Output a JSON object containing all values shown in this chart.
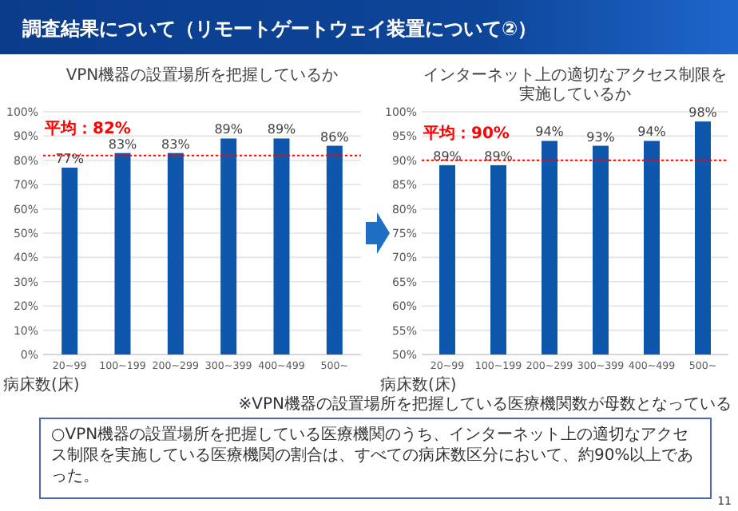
{
  "chart_data": [
    {
      "type": "other",
      "title": "調査結果について（リモートゲートウェイ装置について②）",
      "annotations": [
        "○VPN機器の設置場所を把握している医療機関のうち、インターネット上の適切なアクセス制限を実施している医療機関の割合は、すべての病床数区分において、約90%以上であった。",
        "11"
      ]
    },
    {
      "type": "bar",
      "title": "VPN機器の設置場所を把握しているか",
      "xlabel": "病床数(床)",
      "categories": [
        "20~99",
        "100~199",
        "200~299",
        "300~399",
        "400~499",
        "500~"
      ],
      "values": [
        77,
        83,
        83,
        89,
        89,
        86
      ],
      "color": "#0e57ad",
      "value_labels": [
        "77%",
        "83%",
        "83%",
        "89%",
        "89%",
        "86%"
      ],
      "ylim": [
        0,
        100
      ],
      "yticks": [
        {
          "value": 0,
          "label": "0%"
        },
        {
          "value": 10,
          "label": "10%"
        },
        {
          "value": 20,
          "label": "20%"
        },
        {
          "value": 30,
          "label": "30%"
        },
        {
          "value": 40,
          "label": "40%"
        },
        {
          "value": 50,
          "label": "50%"
        },
        {
          "value": 60,
          "label": "60%"
        },
        {
          "value": 70,
          "label": "70%"
        },
        {
          "value": 80,
          "label": "80%"
        },
        {
          "value": 90,
          "label": "90%"
        },
        {
          "value": 100,
          "label": "100%"
        }
      ],
      "grid": "y",
      "ref_lines": [
        {
          "axis": "y",
          "value": 82,
          "label": "平均：82%",
          "color": "#ff0000",
          "line_style": "dotted"
        }
      ]
    },
    {
      "type": "bar",
      "title": "インターネット上の適切なアクセス制限を実施しているか",
      "xlabel": "病床数(床)",
      "categories": [
        "20~99",
        "100~199",
        "200~299",
        "300~399",
        "400~499",
        "500~"
      ],
      "values": [
        89,
        89,
        94,
        93,
        94,
        98
      ],
      "color": "#0e57ad",
      "value_labels": [
        "89%",
        "89%",
        "94%",
        "93%",
        "94%",
        "98%"
      ],
      "ylim": [
        50,
        100
      ],
      "yticks": [
        {
          "value": 50,
          "label": "50%"
        },
        {
          "value": 55,
          "label": "55%"
        },
        {
          "value": 60,
          "label": "60%"
        },
        {
          "value": 65,
          "label": "65%"
        },
        {
          "value": 70,
          "label": "70%"
        },
        {
          "value": 75,
          "label": "75%"
        },
        {
          "value": 80,
          "label": "80%"
        },
        {
          "value": 85,
          "label": "85%"
        },
        {
          "value": 90,
          "label": "90%"
        },
        {
          "value": 95,
          "label": "95%"
        },
        {
          "value": 100,
          "label": "100%"
        }
      ],
      "grid": "y",
      "ref_lines": [
        {
          "axis": "y",
          "value": 90,
          "label": "平均：90%",
          "color": "#ff0000",
          "line_style": "dotted"
        }
      ],
      "annotations": [
        "※VPN機器の設置場所を把握している医療機関数が母数となっている"
      ]
    }
  ]
}
